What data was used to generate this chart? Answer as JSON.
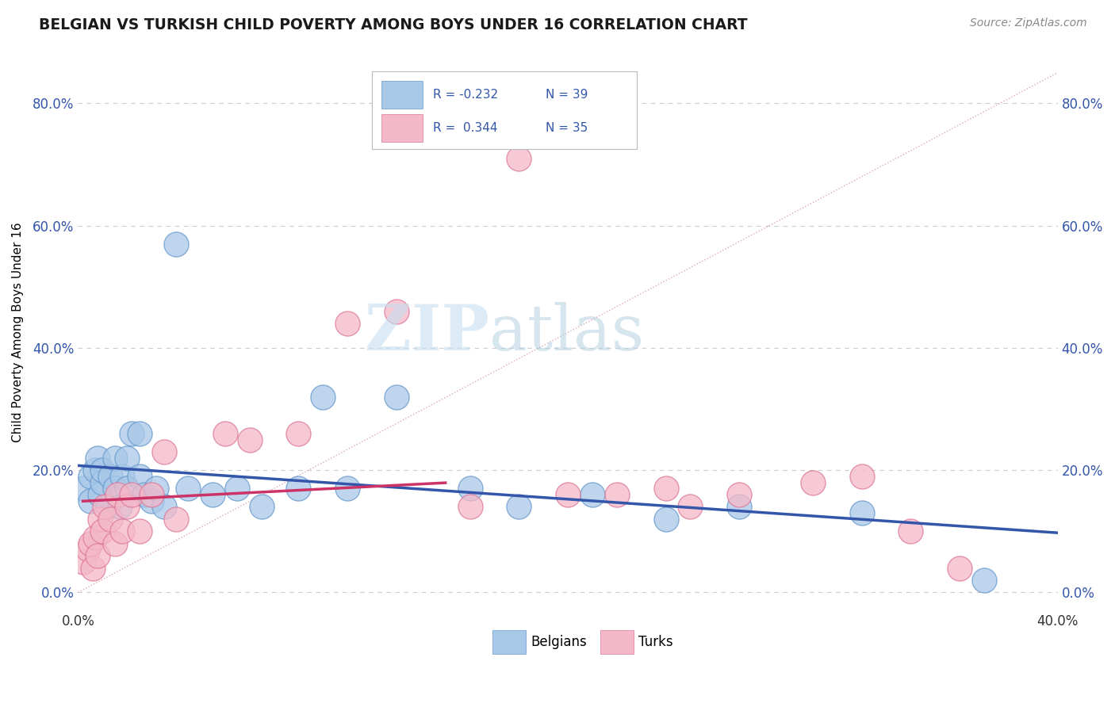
{
  "title": "BELGIAN VS TURKISH CHILD POVERTY AMONG BOYS UNDER 16 CORRELATION CHART",
  "source": "Source: ZipAtlas.com",
  "ylabel": "Child Poverty Among Boys Under 16",
  "ylabel_ticks": [
    "0.0%",
    "20.0%",
    "40.0%",
    "60.0%",
    "80.0%"
  ],
  "ylabel_values": [
    0.0,
    0.2,
    0.4,
    0.6,
    0.8
  ],
  "xlim": [
    0.0,
    0.4
  ],
  "ylim": [
    -0.03,
    0.88
  ],
  "belgian_color": "#a8c8e8",
  "turkish_color": "#f4b8c8",
  "belgian_edge": "#6699cc",
  "turkish_edge": "#dd7799",
  "trendline_color_belgian": "#3355aa",
  "trendline_color_turkish": "#cc3366",
  "diagonal_color": "#ddaaaa",
  "diagonal_style": "dotted",
  "watermark_zip": "ZIP",
  "watermark_atlas": "atlas",
  "belgians_label": "Belgians",
  "turks_label": "Turks",
  "legend_R_belgian": "R = -0.232",
  "legend_N_belgian": "N = 39",
  "legend_R_turkish": "R =  0.344",
  "legend_N_turkish": "N = 35",
  "belgian_x": [
    0.002,
    0.005,
    0.005,
    0.007,
    0.008,
    0.009,
    0.01,
    0.01,
    0.012,
    0.013,
    0.015,
    0.015,
    0.017,
    0.018,
    0.02,
    0.02,
    0.022,
    0.025,
    0.025,
    0.027,
    0.03,
    0.032,
    0.035,
    0.04,
    0.045,
    0.055,
    0.065,
    0.075,
    0.09,
    0.1,
    0.11,
    0.13,
    0.16,
    0.18,
    0.21,
    0.24,
    0.27,
    0.32,
    0.37
  ],
  "belgian_y": [
    0.17,
    0.19,
    0.15,
    0.2,
    0.22,
    0.16,
    0.18,
    0.2,
    0.14,
    0.19,
    0.17,
    0.22,
    0.14,
    0.19,
    0.17,
    0.22,
    0.26,
    0.26,
    0.19,
    0.16,
    0.15,
    0.17,
    0.14,
    0.57,
    0.17,
    0.16,
    0.17,
    0.14,
    0.17,
    0.32,
    0.17,
    0.32,
    0.17,
    0.14,
    0.16,
    0.12,
    0.14,
    0.13,
    0.02
  ],
  "turkish_x": [
    0.002,
    0.004,
    0.005,
    0.006,
    0.007,
    0.008,
    0.009,
    0.01,
    0.011,
    0.013,
    0.015,
    0.016,
    0.018,
    0.02,
    0.022,
    0.025,
    0.03,
    0.035,
    0.04,
    0.06,
    0.07,
    0.09,
    0.11,
    0.13,
    0.16,
    0.18,
    0.2,
    0.22,
    0.24,
    0.25,
    0.27,
    0.3,
    0.32,
    0.34,
    0.36
  ],
  "turkish_y": [
    0.05,
    0.07,
    0.08,
    0.04,
    0.09,
    0.06,
    0.12,
    0.1,
    0.14,
    0.12,
    0.08,
    0.16,
    0.1,
    0.14,
    0.16,
    0.1,
    0.16,
    0.23,
    0.12,
    0.26,
    0.25,
    0.26,
    0.44,
    0.46,
    0.14,
    0.71,
    0.16,
    0.16,
    0.17,
    0.14,
    0.16,
    0.18,
    0.19,
    0.1,
    0.04
  ]
}
